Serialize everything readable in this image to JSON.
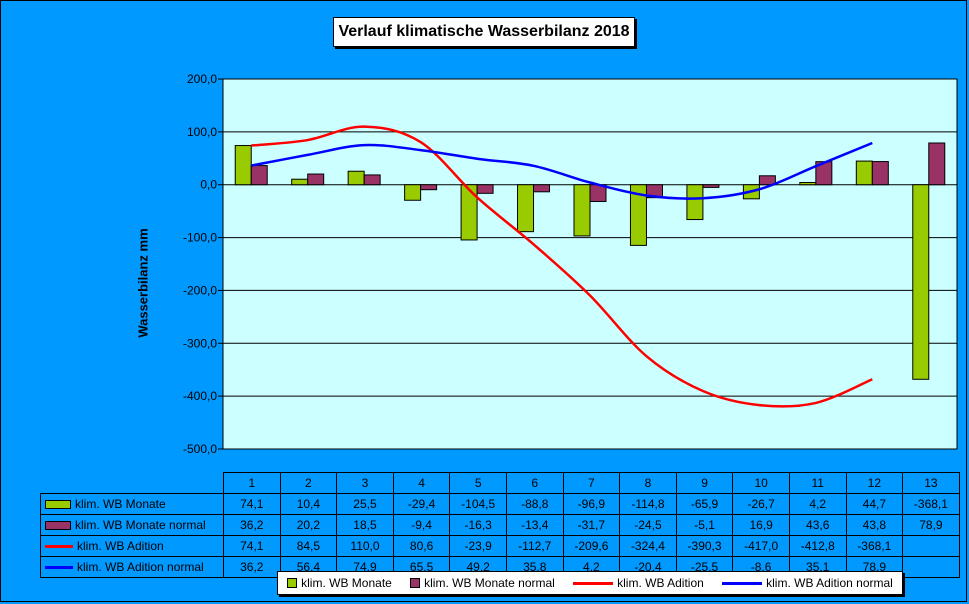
{
  "chart_data": {
    "type": "bar",
    "title": "Verlauf klimatische Wasserbilanz 2018",
    "ylabel": "Wasserbilanz mm",
    "ylim": [
      -500,
      200
    ],
    "yticks": [
      "200,0",
      "100,0",
      "0,0",
      "-100,0",
      "-200,0",
      "-300,0",
      "-400,0",
      "-500,0"
    ],
    "yticks_values": [
      200,
      100,
      0,
      -100,
      -200,
      -300,
      -400,
      -500
    ],
    "categories": [
      "1",
      "2",
      "3",
      "4",
      "5",
      "6",
      "7",
      "8",
      "9",
      "10",
      "11",
      "12",
      "13"
    ],
    "series": [
      {
        "name": "klim. WB Monate",
        "kind": "bar",
        "color": "#99cc00",
        "values": [
          74.1,
          10.4,
          25.5,
          -29.4,
          -104.5,
          -88.8,
          -96.9,
          -114.8,
          -65.9,
          -26.7,
          4.2,
          44.7,
          -368.1
        ],
        "labels": [
          "74,1",
          "10,4",
          "25,5",
          "-29,4",
          "-104,5",
          "-88,8",
          "-96,9",
          "-114,8",
          "-65,9",
          "-26,7",
          "4,2",
          "44,7",
          "-368,1"
        ]
      },
      {
        "name": "klim. WB Monate normal",
        "kind": "bar",
        "color": "#993366",
        "values": [
          36.2,
          20.2,
          18.5,
          -9.4,
          -16.3,
          -13.4,
          -31.7,
          -24.5,
          -5.1,
          16.9,
          43.6,
          43.8,
          78.9
        ],
        "labels": [
          "36,2",
          "20,2",
          "18,5",
          "-9,4",
          "-16,3",
          "-13,4",
          "-31,7",
          "-24,5",
          "-5,1",
          "16,9",
          "43,6",
          "43,8",
          "78,9"
        ]
      },
      {
        "name": "klim. WB Adition",
        "kind": "line",
        "color": "#ff0000",
        "values": [
          74.1,
          84.5,
          110.0,
          80.6,
          -23.9,
          -112.7,
          -209.6,
          -324.4,
          -390.3,
          -417.0,
          -412.8,
          -368.1,
          null
        ],
        "labels": [
          "74,1",
          "84,5",
          "110,0",
          "80,6",
          "-23,9",
          "-112,7",
          "-209,6",
          "-324,4",
          "-390,3",
          "-417,0",
          "-412,8",
          "-368,1",
          ""
        ]
      },
      {
        "name": "klim. WB Adition normal",
        "kind": "line",
        "color": "#0000ff",
        "values": [
          36.2,
          56.4,
          74.9,
          65.5,
          49.2,
          35.8,
          4.2,
          -20.4,
          -25.5,
          -8.6,
          35.1,
          78.9,
          null
        ],
        "labels": [
          "36,2",
          "56,4",
          "74,9",
          "65,5",
          "49,2",
          "35,8",
          "4,2",
          "-20,4",
          "-25,5",
          "-8,6",
          "35,1",
          "78,9",
          ""
        ]
      }
    ],
    "plot_background": "#ccffff",
    "grid": true,
    "legend_position": "bottom"
  }
}
